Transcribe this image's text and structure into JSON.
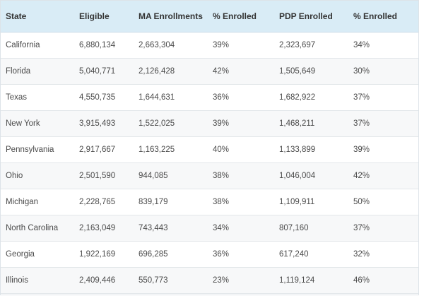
{
  "table": {
    "headers": [
      "State",
      "Eligible",
      "MA Enrollments",
      "% Enrolled",
      "PDP Enrolled",
      "% Enrolled"
    ],
    "rows": [
      [
        "California",
        "6,880,134",
        "2,663,304",
        "39%",
        "2,323,697",
        "34%"
      ],
      [
        "Florida",
        "5,040,771",
        "2,126,428",
        "42%",
        "1,505,649",
        "30%"
      ],
      [
        "Texas",
        "4,550,735",
        "1,644,631",
        "36%",
        "1,682,922",
        "37%"
      ],
      [
        "New York",
        "3,915,493",
        "1,522,025",
        "39%",
        "1,468,211",
        "37%"
      ],
      [
        "Pennsylvania",
        "2,917,667",
        "1,163,225",
        "40%",
        "1,133,899",
        "39%"
      ],
      [
        "Ohio",
        "2,501,590",
        "944,085",
        "38%",
        "1,046,004",
        "42%"
      ],
      [
        "Michigan",
        "2,228,765",
        "839,179",
        "38%",
        "1,109,911",
        "50%"
      ],
      [
        "North Carolina",
        "2,163,049",
        "743,443",
        "34%",
        "807,160",
        "37%"
      ],
      [
        "Georgia",
        "1,922,169",
        "696,285",
        "36%",
        "617,240",
        "32%"
      ],
      [
        "Illinois",
        "2,409,446",
        "550,773",
        "23%",
        "1,119,124",
        "46%"
      ]
    ]
  },
  "colors": {
    "header_bg": "#d9ecf6",
    "row_alt_bg": "#f7f8f9",
    "text": "#4a4a4a"
  }
}
